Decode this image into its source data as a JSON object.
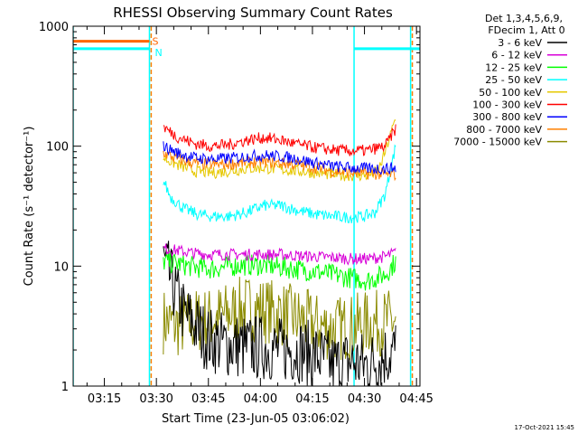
{
  "chart_data": {
    "type": "line",
    "title": "RHESSI Observing Summary Count Rates",
    "xlabel": "Start Time (23-Jun-05 03:06:02)",
    "ylabel": "Count Rate (s⁻¹ detector⁻¹)",
    "yscale": "log",
    "ylim": [
      1,
      1000
    ],
    "xlim_minutes": [
      0,
      100
    ],
    "x_ticks": [
      {
        "label": "03:15",
        "minute": 9
      },
      {
        "label": "03:30",
        "minute": 24
      },
      {
        "label": "03:45",
        "minute": 39
      },
      {
        "label": "04:00",
        "minute": 54
      },
      {
        "label": "04:15",
        "minute": 69
      },
      {
        "label": "04:30",
        "minute": 84
      },
      {
        "label": "04:45",
        "minute": 99
      }
    ],
    "y_ticks": [
      {
        "label": "1",
        "value": 1
      },
      {
        "label": "10",
        "value": 10
      },
      {
        "label": "100",
        "value": 100
      },
      {
        "label": "1000",
        "value": 1000
      }
    ],
    "legend_header": [
      "Det 1,3,4,5,6,9,",
      "FDecim 1, Att 0"
    ],
    "legend_position": "right",
    "series": [
      {
        "name": "3 - 6 keV",
        "color": "#000000",
        "x": [
          26,
          28,
          30,
          32,
          34,
          36,
          38,
          40,
          45,
          50,
          55,
          60,
          65,
          70,
          75,
          80,
          85,
          90,
          93
        ],
        "y": [
          11,
          8,
          5.5,
          4,
          3.5,
          3,
          2.6,
          2.4,
          2.2,
          2.1,
          2.1,
          2,
          2,
          1.8,
          1.5,
          1.6,
          1.5,
          1.8,
          2
        ]
      },
      {
        "name": "6 - 12 keV",
        "color": "#d800d8",
        "x": [
          26,
          30,
          35,
          40,
          45,
          50,
          55,
          60,
          65,
          70,
          75,
          80,
          85,
          90,
          93
        ],
        "y": [
          14,
          13.5,
          12.8,
          12.5,
          12.5,
          12.5,
          12.5,
          12.5,
          12.2,
          12,
          11.8,
          11.5,
          11.5,
          12,
          13
        ]
      },
      {
        "name": "12 - 25 keV",
        "color": "#00ff00",
        "x": [
          26,
          30,
          35,
          40,
          45,
          50,
          55,
          60,
          65,
          70,
          75,
          80,
          85,
          90,
          93
        ],
        "y": [
          11,
          10.5,
          9.8,
          9.5,
          10,
          10.2,
          10.2,
          9.8,
          9.4,
          9,
          8.5,
          8,
          7.6,
          8.5,
          11
        ]
      },
      {
        "name": "25 - 50 keV",
        "color": "#00ffff",
        "x": [
          26,
          28,
          32,
          36,
          40,
          45,
          50,
          55,
          60,
          65,
          70,
          75,
          80,
          84,
          87,
          90,
          93
        ],
        "y": [
          52,
          38,
          30,
          27,
          26,
          26,
          28,
          32,
          32,
          29,
          27,
          26,
          25.5,
          26,
          28,
          40,
          100
        ]
      },
      {
        "name": "50 - 100 keV",
        "color": "#e6c800",
        "x": [
          26,
          30,
          35,
          40,
          45,
          50,
          55,
          60,
          65,
          70,
          75,
          80,
          85,
          88,
          90,
          93
        ],
        "y": [
          80,
          70,
          62,
          60,
          62,
          65,
          66,
          64,
          62,
          60,
          58,
          57,
          57,
          62,
          90,
          170
        ]
      },
      {
        "name": "100 - 300 keV",
        "color": "#ff0000",
        "x": [
          26,
          30,
          35,
          40,
          45,
          50,
          55,
          60,
          65,
          70,
          75,
          80,
          85,
          90,
          93
        ],
        "y": [
          145,
          120,
          105,
          100,
          103,
          112,
          118,
          112,
          103,
          97,
          93,
          91,
          92,
          100,
          140
        ]
      },
      {
        "name": "300 - 800 keV",
        "color": "#0000ff",
        "x": [
          26,
          30,
          35,
          40,
          45,
          50,
          55,
          60,
          65,
          70,
          75,
          80,
          85,
          90,
          93
        ],
        "y": [
          100,
          88,
          80,
          78,
          79,
          82,
          84,
          82,
          78,
          72,
          68,
          66,
          65,
          65,
          66
        ]
      },
      {
        "name": "800 - 7000 keV",
        "color": "#ff8000",
        "x": [
          26,
          30,
          35,
          40,
          45,
          50,
          55,
          60,
          65,
          70,
          75,
          80,
          85,
          90,
          93
        ],
        "y": [
          88,
          78,
          72,
          70,
          71,
          73,
          74,
          72,
          70,
          66,
          62,
          60,
          59,
          58,
          58
        ]
      },
      {
        "name": "7000 - 15000 keV",
        "color": "#8b8b00",
        "x": [
          26,
          30,
          35,
          40,
          45,
          50,
          55,
          60,
          65,
          70,
          75,
          80,
          85,
          90,
          93
        ],
        "y": [
          3.5,
          3.2,
          3.5,
          3.6,
          4,
          4.5,
          4.3,
          4,
          3.6,
          3.2,
          3,
          3.1,
          3.3,
          3.4,
          3.5
        ]
      }
    ],
    "markers": {
      "saa_label": "S",
      "night_label": "N",
      "saa_bar": {
        "x_from": 0,
        "x_to": 22,
        "y": 750,
        "color": "#ff6600"
      },
      "night_bar": {
        "x_from": 0,
        "x_to": 22,
        "y": 650,
        "color": "#00ffff"
      },
      "night_bar2": {
        "x_from": 81,
        "x_to": 100,
        "y": 650,
        "color": "#00ffff"
      },
      "orange_lines_minute": [
        22.5,
        97.8
      ],
      "cyan_lines_minute": [
        0,
        22,
        81,
        97.3
      ]
    }
  },
  "footer_date": "17-Oct-2021 15:45"
}
